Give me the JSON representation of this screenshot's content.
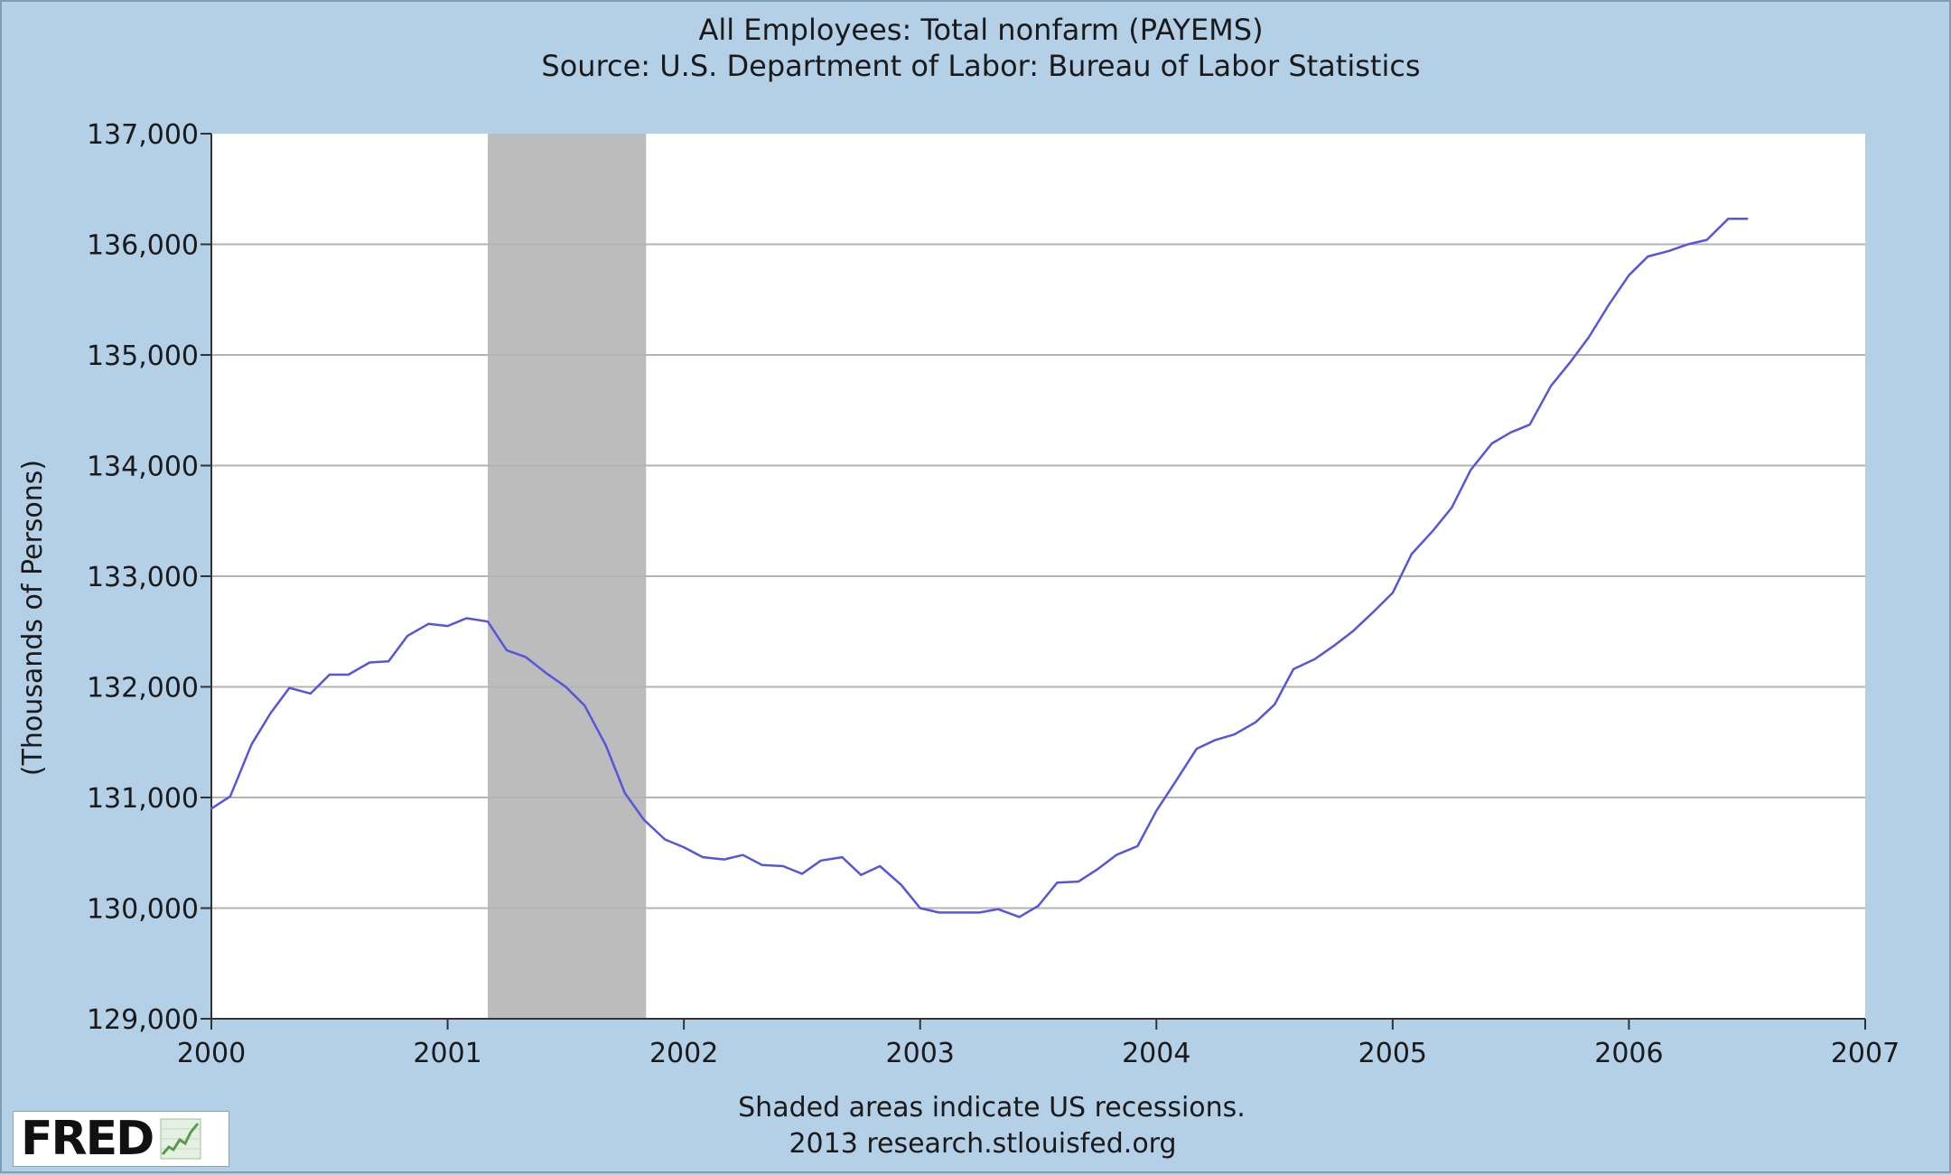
{
  "chart_data": {
    "type": "line",
    "title": "All Employees: Total nonfarm (PAYEMS)",
    "subtitle": "Source: U.S. Department of Labor: Bureau of Labor Statistics",
    "ylabel": "(Thousands of Persons)",
    "xlabel": "",
    "xlim": [
      2000,
      2007
    ],
    "ylim": [
      129000,
      137000
    ],
    "x_ticks": [
      "2000",
      "2001",
      "2002",
      "2003",
      "2004",
      "2005",
      "2006",
      "2007"
    ],
    "y_ticks": [
      "129,000",
      "130,000",
      "131,000",
      "132,000",
      "133,000",
      "134,000",
      "135,000",
      "136,000",
      "137,000"
    ],
    "grid": true,
    "recession_shading": [
      {
        "start": 2001.17,
        "end": 2001.84
      }
    ],
    "series": [
      {
        "color": "#5555dd",
        "x": [
          2000.0,
          2000.08,
          2000.17,
          2000.25,
          2000.33,
          2000.42,
          2000.5,
          2000.58,
          2000.67,
          2000.75,
          2000.83,
          2000.92,
          2001.0,
          2001.08,
          2001.17,
          2001.25,
          2001.33,
          2001.42,
          2001.5,
          2001.58,
          2001.67,
          2001.75,
          2001.83,
          2001.92,
          2002.0,
          2002.08,
          2002.17,
          2002.25,
          2002.33,
          2002.42,
          2002.5,
          2002.58,
          2002.67,
          2002.75,
          2002.83,
          2002.92,
          2003.0,
          2003.08,
          2003.17,
          2003.25,
          2003.33,
          2003.42,
          2003.5,
          2003.58,
          2003.67,
          2003.75,
          2003.83,
          2003.92,
          2004.0,
          2004.08,
          2004.17,
          2004.25,
          2004.33,
          2004.42,
          2004.5,
          2004.58,
          2004.67,
          2004.75,
          2004.83,
          2004.92,
          2005.0,
          2005.08,
          2005.17,
          2005.25,
          2005.33,
          2005.42,
          2005.5,
          2005.58,
          2005.67,
          2005.75,
          2005.83,
          2005.92,
          2006.0,
          2006.08,
          2006.17,
          2006.25,
          2006.33,
          2006.42,
          2006.5
        ],
        "values": [
          130900,
          131010,
          131480,
          131760,
          131990,
          131940,
          132110,
          132110,
          132220,
          132230,
          132460,
          132570,
          132550,
          132620,
          132590,
          132330,
          132270,
          132120,
          132000,
          131830,
          131470,
          131040,
          130800,
          130620,
          130550,
          130460,
          130440,
          130480,
          130390,
          130380,
          130310,
          130430,
          130460,
          130300,
          130380,
          130210,
          130000,
          129960,
          129960,
          129960,
          129990,
          129920,
          130020,
          130230,
          130240,
          130350,
          130480,
          130560,
          130880,
          131140,
          131440,
          131520,
          131570,
          131680,
          131840,
          132160,
          132250,
          132370,
          132500,
          132680,
          132850,
          133200,
          133410,
          133620,
          133960,
          134200,
          134300,
          134370,
          134720,
          134930,
          135160,
          135470,
          135720,
          135890,
          135940,
          136000,
          136040,
          136230,
          136230
        ]
      }
    ],
    "footer_note": "Shaded areas indicate US recessions.",
    "footer_source": "2013 research.stlouisfed.org",
    "logo_text": "FRED"
  }
}
